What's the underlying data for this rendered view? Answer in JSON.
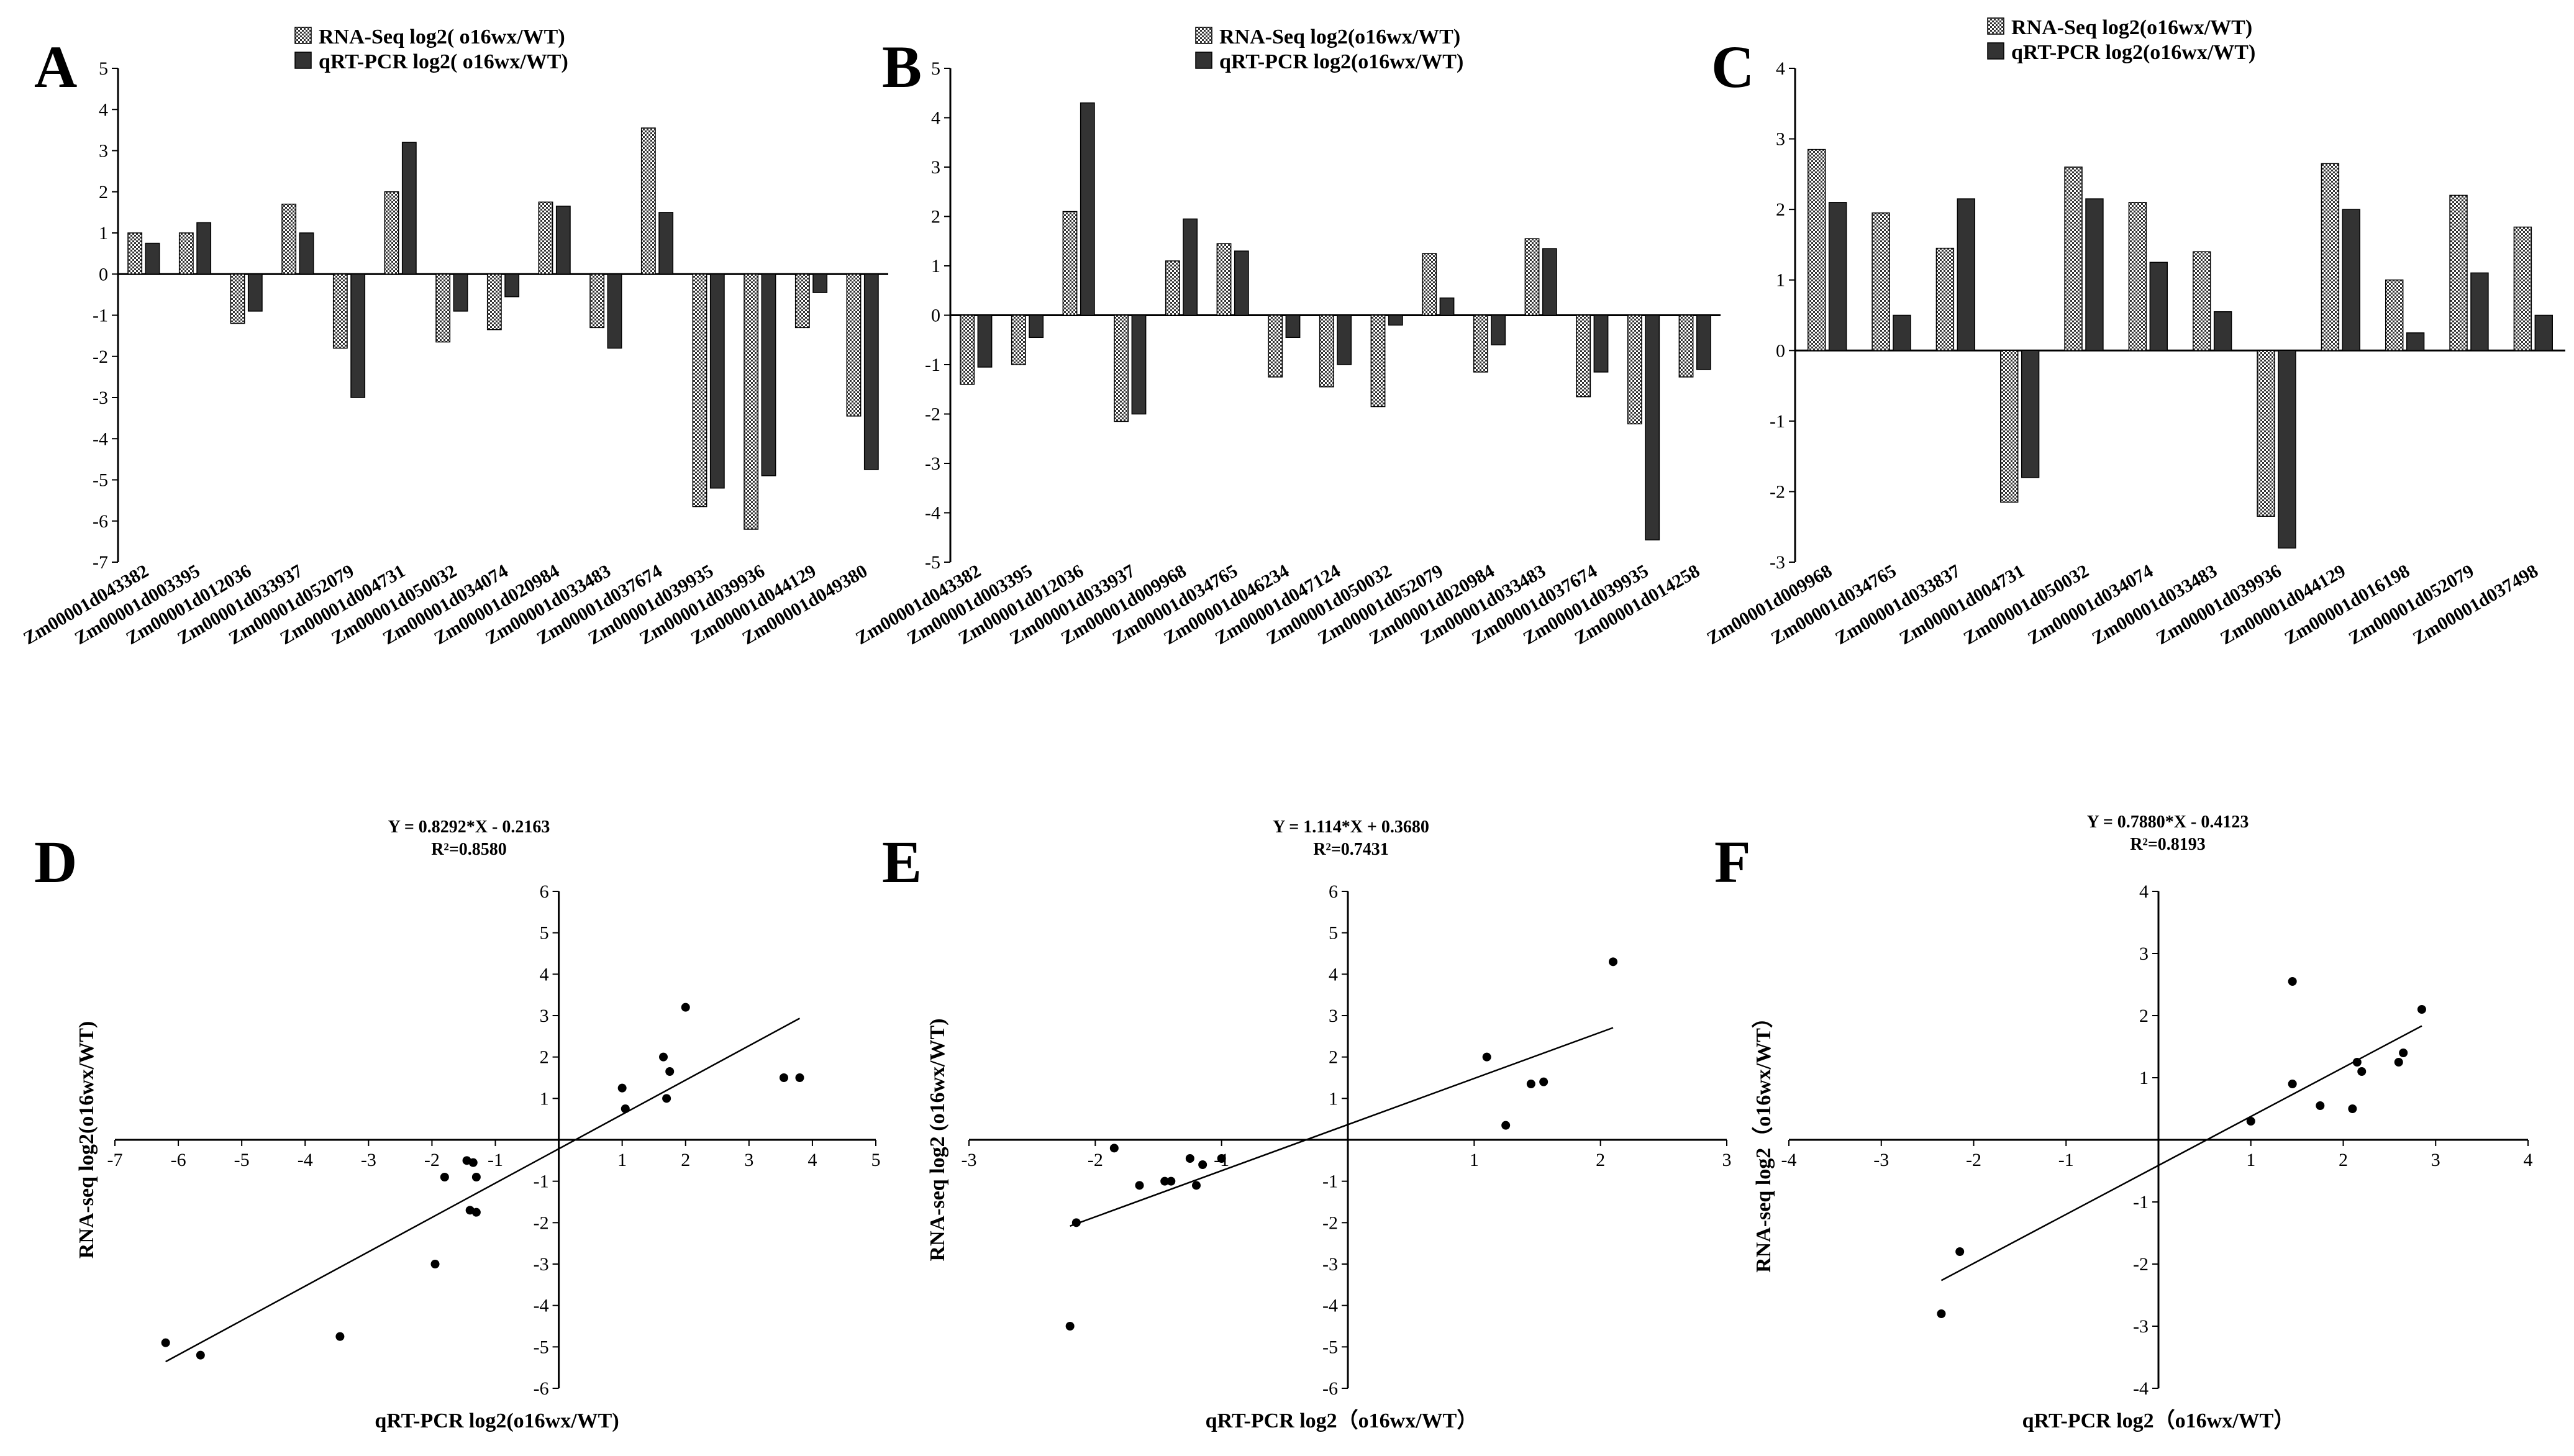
{
  "figure": {
    "charts": [
      {
        "id": "A",
        "type": "bar",
        "letter": "A",
        "ylim": [
          -7,
          5
        ],
        "series": [
          {
            "name": "RNA-Seq  log2( o16wx/WT)",
            "pattern": "dotted",
            "values": [
              1.0,
              1.0,
              -1.2,
              1.7,
              -1.8,
              2.0,
              -1.65,
              -1.35,
              1.75,
              -1.3,
              3.55,
              -5.65,
              -6.2,
              -1.3,
              -3.45
            ]
          },
          {
            "name": "qRT-PCR log2( o16wx/WT)",
            "pattern": "solid",
            "values": [
              0.75,
              1.25,
              -0.9,
              1.0,
              -3.0,
              3.2,
              -0.9,
              -0.55,
              1.65,
              -1.8,
              1.5,
              -5.2,
              -4.9,
              -0.45,
              -4.75
            ]
          }
        ],
        "categories": [
          "Zm00001d043382",
          "Zm00001d003395",
          "Zm00001d012036",
          "Zm00001d033937",
          "Zm00001d052079",
          "Zm00001d004731",
          "Zm00001d050032",
          "Zm00001d034074",
          "Zm00001d020984",
          "Zm00001d033483",
          "Zm00001d037674",
          "Zm00001d039935",
          "Zm00001d039936",
          "Zm00001d044129",
          "Zm00001d049380"
        ]
      },
      {
        "id": "B",
        "type": "bar",
        "letter": "B",
        "ylim": [
          -5,
          5
        ],
        "series": [
          {
            "name": "RNA-Seq  log2(o16wx/WT)",
            "pattern": "dotted",
            "values": [
              -1.4,
              -1.0,
              2.1,
              -2.15,
              1.1,
              1.45,
              -1.25,
              -1.45,
              -1.85,
              1.25,
              -1.15,
              1.55,
              -1.65,
              -2.2,
              -1.25
            ]
          },
          {
            "name": "qRT-PCR log2(o16wx/WT)",
            "pattern": "solid",
            "values": [
              -1.05,
              -0.45,
              4.3,
              -2.0,
              1.95,
              1.3,
              -0.45,
              -1.0,
              -0.2,
              0.35,
              -0.6,
              1.35,
              -1.15,
              -4.55,
              -1.1
            ]
          }
        ],
        "categories": [
          "Zm00001d043382",
          "Zm00001d003395",
          "Zm00001d012036",
          "Zm00001d033937",
          "Zm00001d009968",
          "Zm00001d034765",
          "Zm00001d046234",
          "Zm00001d047124",
          "Zm00001d050032",
          "Zm00001d052079",
          "Zm00001d020984",
          "Zm00001d033483",
          "Zm00001d037674",
          "Zm00001d039935",
          "Zm00001d014258"
        ]
      },
      {
        "id": "C",
        "type": "bar",
        "letter": "C",
        "ylim": [
          -3,
          4
        ],
        "series": [
          {
            "name": "RNA-Seq  log2(o16wx/WT)",
            "pattern": "dotted",
            "values": [
              2.85,
              1.95,
              1.45,
              -2.15,
              2.6,
              2.1,
              1.4,
              -2.35,
              2.65,
              1.0,
              2.2,
              1.75
            ]
          },
          {
            "name": "qRT-PCR log2(o16wx/WT)",
            "pattern": "solid",
            "values": [
              2.1,
              0.5,
              2.15,
              -1.8,
              2.15,
              1.25,
              0.55,
              -2.8,
              2.0,
              0.25,
              1.1,
              0.5
            ]
          }
        ],
        "categories": [
          "Zm00001d009968",
          "Zm00001d034765",
          "Zm00001d033837",
          "Zm00001d004731",
          "Zm00001d050032",
          "Zm00001d034074",
          "Zm00001d033483",
          "Zm00001d039936",
          "Zm00001d044129",
          "Zm00001d016198",
          "Zm00001d052079",
          "Zm00001d037498"
        ]
      },
      {
        "id": "D",
        "type": "scatter",
        "letter": "D",
        "xlim": [
          -7,
          5
        ],
        "ylim": [
          -6,
          6
        ],
        "equation": "Y = 0.8292*X - 0.2163",
        "r2": "R²=0.8580",
        "xlabel": "qRT-PCR log2(o16wx/WT)",
        "ylabel": "RNA-seq log2(o16wx/WT)",
        "fit": {
          "slope": 0.8292,
          "intercept": -0.2163,
          "xrange": [
            -6.2,
            3.8
          ]
        },
        "points": [
          [
            1.0,
            1.25
          ],
          [
            1.05,
            0.75
          ],
          [
            1.65,
            2.0
          ],
          [
            1.75,
            1.65
          ],
          [
            1.7,
            1.0
          ],
          [
            2.0,
            3.2
          ],
          [
            3.55,
            1.5
          ],
          [
            3.8,
            1.5
          ],
          [
            -1.8,
            -0.9
          ],
          [
            -1.3,
            -0.9
          ],
          [
            -1.35,
            -0.55
          ],
          [
            -1.45,
            -0.5
          ],
          [
            -1.3,
            -1.75
          ],
          [
            -1.4,
            -1.7
          ],
          [
            -1.95,
            -3.0
          ],
          [
            -3.45,
            -4.75
          ],
          [
            -5.65,
            -5.2
          ],
          [
            -6.2,
            -4.9
          ]
        ]
      },
      {
        "id": "E",
        "type": "scatter",
        "letter": "E",
        "xlim": [
          -3,
          3
        ],
        "ylim": [
          -6,
          6
        ],
        "equation": "Y = 1.114*X + 0.3680",
        "r2": "R²=0.7431",
        "xlabel": "qRT-PCR log2（o16wx/WT）",
        "ylabel": "RNA-seq log2 (o16wx/WT)",
        "fit": {
          "slope": 1.114,
          "intercept": 0.368,
          "xrange": [
            -2.2,
            2.1
          ]
        },
        "points": [
          [
            2.1,
            4.3
          ],
          [
            1.1,
            2.0
          ],
          [
            1.45,
            1.35
          ],
          [
            1.55,
            1.4
          ],
          [
            1.25,
            0.35
          ],
          [
            -2.15,
            -2.0
          ],
          [
            -2.2,
            -4.5
          ],
          [
            -1.85,
            -0.2
          ],
          [
            -1.65,
            -1.1
          ],
          [
            -1.45,
            -1.0
          ],
          [
            -1.4,
            -1.0
          ],
          [
            -1.25,
            -0.45
          ],
          [
            -1.15,
            -0.6
          ],
          [
            -1.2,
            -1.1
          ],
          [
            -1.0,
            -0.45
          ]
        ]
      },
      {
        "id": "F",
        "type": "scatter",
        "letter": "F",
        "xlim": [
          -4,
          4
        ],
        "ylim": [
          -4,
          4
        ],
        "equation": "Y = 0.7880*X - 0.4123",
        "r2": "R²=0.8193",
        "xlabel": "qRT-PCR log2（o16wx/WT）",
        "ylabel": "RNA-seq log2（o16wx/WT）",
        "fit": {
          "slope": 0.788,
          "intercept": -0.4123,
          "xrange": [
            -2.35,
            2.85
          ]
        },
        "points": [
          [
            2.85,
            2.1
          ],
          [
            1.45,
            2.55
          ],
          [
            1.45,
            0.9
          ],
          [
            1.0,
            0.3
          ],
          [
            1.75,
            0.55
          ],
          [
            2.1,
            0.5
          ],
          [
            2.15,
            1.25
          ],
          [
            2.2,
            1.1
          ],
          [
            2.6,
            1.25
          ],
          [
            2.65,
            1.4
          ],
          [
            -2.15,
            -1.8
          ],
          [
            -2.35,
            -2.8
          ]
        ]
      }
    ]
  }
}
